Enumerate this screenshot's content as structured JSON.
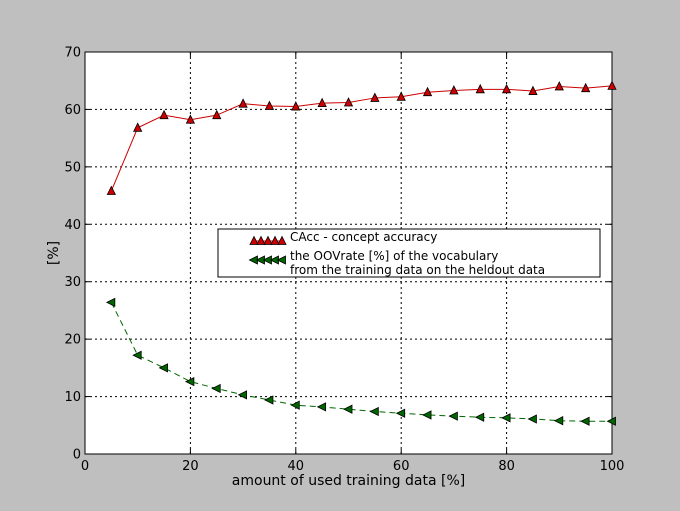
{
  "chart_data": {
    "type": "line",
    "title": "",
    "xlabel": "amount of used training data [%]",
    "ylabel": "[%]",
    "xlim": [
      0,
      100
    ],
    "ylim": [
      0,
      70
    ],
    "xticks": [
      0,
      20,
      40,
      60,
      80,
      100
    ],
    "yticks": [
      0,
      10,
      20,
      30,
      40,
      50,
      60,
      70
    ],
    "grid": true,
    "legend_position": "center-right",
    "x": [
      5,
      10,
      15,
      20,
      25,
      30,
      35,
      40,
      45,
      50,
      55,
      60,
      65,
      70,
      75,
      80,
      85,
      90,
      95,
      100
    ],
    "series": [
      {
        "name": "CAcc - concept accuracy",
        "color": "#cc0000",
        "marker": "triangle-up",
        "line_style": "solid",
        "values": [
          45.8,
          56.8,
          59.0,
          58.2,
          59.0,
          61.0,
          60.6,
          60.5,
          61.1,
          61.2,
          62.0,
          62.2,
          63.0,
          63.3,
          63.5,
          63.5,
          63.2,
          64.0,
          63.7,
          64.1
        ]
      },
      {
        "name": "the OOVrate [%] of the vocabulary\nfrom the training data on the heldout data",
        "color": "#006600",
        "marker": "triangle-left",
        "line_style": "dashed",
        "values": [
          26.4,
          17.2,
          15.0,
          12.6,
          11.4,
          10.3,
          9.4,
          8.5,
          8.2,
          7.8,
          7.4,
          7.1,
          6.8,
          6.6,
          6.4,
          6.3,
          6.1,
          5.8,
          5.7,
          5.7
        ]
      }
    ]
  }
}
